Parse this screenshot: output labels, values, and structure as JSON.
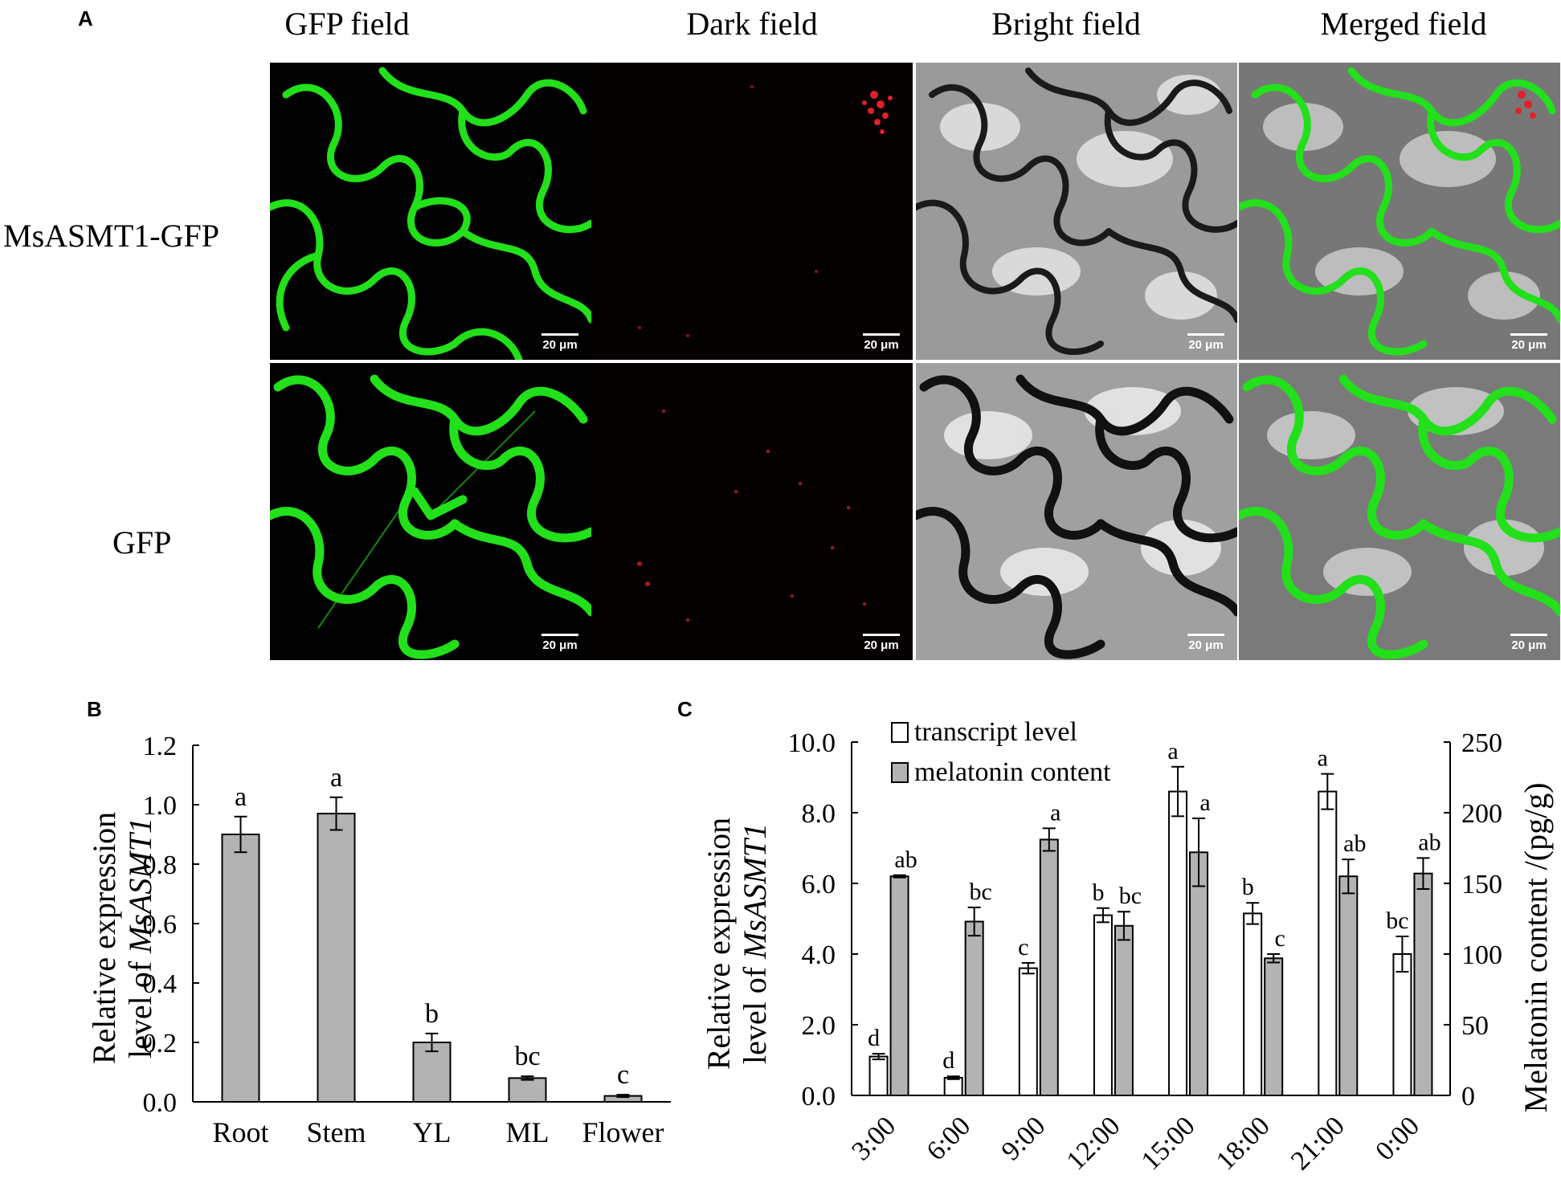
{
  "panelA": {
    "letter": "A",
    "columns": [
      "GFP field",
      "Dark field",
      "Bright field",
      "Merged field"
    ],
    "rows": [
      "MsASMT1-GFP",
      "GFP"
    ],
    "scale_bar": "20 μm",
    "colors": {
      "gfp": "#22e01a",
      "dark": "#000000",
      "red_signal": "#e0202a"
    }
  },
  "panelB": {
    "letter": "B",
    "chart_data": {
      "type": "bar",
      "categories": [
        "Root",
        "Stem",
        "YL",
        "ML",
        "Flower"
      ],
      "values": [
        0.9,
        0.97,
        0.2,
        0.08,
        0.02
      ],
      "errors": [
        0.06,
        0.055,
        0.03,
        0.006,
        0.004
      ],
      "letters": [
        "a",
        "a",
        "b",
        "bc",
        "c"
      ],
      "ylabel_line1": "Relative expression",
      "ylabel_line2_prefix": "level of ",
      "ylabel_gene": "MsASMT1",
      "ylim": [
        0,
        1.2
      ],
      "yticks": [
        "0.0",
        "0.2",
        "0.4",
        "0.6",
        "0.8",
        "1.0",
        "1.2"
      ],
      "bar_color": "#b3b3b3"
    }
  },
  "panelC": {
    "letter": "C",
    "chart_data": {
      "type": "bar",
      "categories": [
        "3:00",
        "6:00",
        "9:00",
        "12:00",
        "15:00",
        "18:00",
        "21:00",
        "0:00"
      ],
      "series": [
        {
          "name": "transcript level",
          "axis": "left",
          "color": "#ffffff",
          "values": [
            1.1,
            0.5,
            3.6,
            5.1,
            8.6,
            5.15,
            8.6,
            4.0
          ],
          "errors": [
            0.08,
            0.04,
            0.15,
            0.2,
            0.7,
            0.3,
            0.5,
            0.5
          ],
          "letters": [
            "d",
            "d",
            "c",
            "b",
            "a",
            "b",
            "a",
            "bc"
          ]
        },
        {
          "name": "melatonin content",
          "axis": "right",
          "color": "#b3b3b3",
          "values": [
            155,
            123,
            181,
            120,
            172,
            97,
            155,
            157
          ],
          "errors": [
            0.8,
            10,
            8,
            10,
            24,
            3,
            12,
            11
          ],
          "letters": [
            "ab",
            "bc",
            "a",
            "bc",
            "a",
            "c",
            "ab",
            "ab"
          ]
        }
      ],
      "ylabel_left_line1": "Relative expression",
      "ylabel_left_line2_prefix": "level of ",
      "ylabel_left_gene": "MsASMT1",
      "ylabel_right": "Melatonin content /(pg/g)",
      "ylim_left": [
        0,
        10
      ],
      "ylim_right": [
        0,
        250
      ],
      "yticks_left": [
        "0.0",
        "2.0",
        "4.0",
        "6.0",
        "8.0",
        "10.0"
      ],
      "yticks_right": [
        "0",
        "50",
        "100",
        "150",
        "200",
        "250"
      ],
      "legend_position": "top-left"
    }
  }
}
